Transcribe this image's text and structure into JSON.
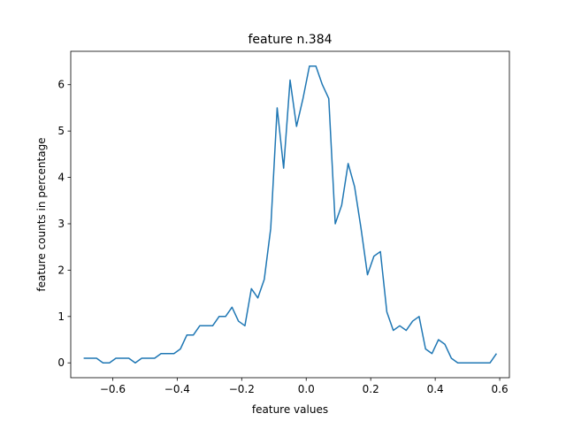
{
  "chart_data": {
    "type": "line",
    "title": "feature n.384",
    "xlabel": "feature values",
    "ylabel": "feature counts in percentage",
    "xlim": [
      -0.73,
      0.63
    ],
    "ylim": [
      -0.32,
      6.72
    ],
    "xticks": [
      -0.6,
      -0.4,
      -0.2,
      0.0,
      0.2,
      0.4,
      0.6
    ],
    "xtick_labels": [
      "−0.6",
      "−0.4",
      "−0.2",
      "0.0",
      "0.2",
      "0.4",
      "0.6"
    ],
    "yticks": [
      0,
      1,
      2,
      3,
      4,
      5,
      6
    ],
    "ytick_labels": [
      "0",
      "1",
      "2",
      "3",
      "4",
      "5",
      "6"
    ],
    "grid": false,
    "series": [
      {
        "color": "#1f77b4",
        "x": [
          -0.69,
          -0.67,
          -0.65,
          -0.63,
          -0.61,
          -0.59,
          -0.57,
          -0.55,
          -0.53,
          -0.51,
          -0.49,
          -0.47,
          -0.45,
          -0.43,
          -0.41,
          -0.39,
          -0.37,
          -0.35,
          -0.33,
          -0.31,
          -0.29,
          -0.27,
          -0.25,
          -0.23,
          -0.21,
          -0.19,
          -0.17,
          -0.15,
          -0.13,
          -0.11,
          -0.09,
          -0.07,
          -0.05,
          -0.03,
          -0.01,
          0.01,
          0.03,
          0.05,
          0.07,
          0.09,
          0.11,
          0.13,
          0.15,
          0.17,
          0.19,
          0.21,
          0.23,
          0.25,
          0.27,
          0.29,
          0.31,
          0.33,
          0.35,
          0.37,
          0.39,
          0.41,
          0.43,
          0.45,
          0.47,
          0.49,
          0.51,
          0.53,
          0.55,
          0.57,
          0.59
        ],
        "y": [
          0.1,
          0.1,
          0.1,
          0.0,
          0.0,
          0.1,
          0.1,
          0.1,
          0.0,
          0.1,
          0.1,
          0.1,
          0.2,
          0.2,
          0.2,
          0.3,
          0.6,
          0.6,
          0.8,
          0.8,
          0.8,
          1.0,
          1.0,
          1.2,
          0.9,
          0.8,
          1.6,
          1.4,
          1.8,
          2.9,
          5.5,
          4.2,
          6.1,
          5.1,
          5.7,
          6.4,
          6.4,
          6.0,
          5.7,
          3.0,
          3.4,
          4.3,
          3.8,
          2.9,
          1.9,
          2.3,
          2.4,
          1.1,
          0.7,
          0.8,
          0.7,
          0.9,
          1.0,
          0.3,
          0.2,
          0.5,
          0.4,
          0.1,
          0.0,
          0.0,
          0.0,
          0.0,
          0.0,
          0.0,
          0.2
        ]
      }
    ]
  }
}
